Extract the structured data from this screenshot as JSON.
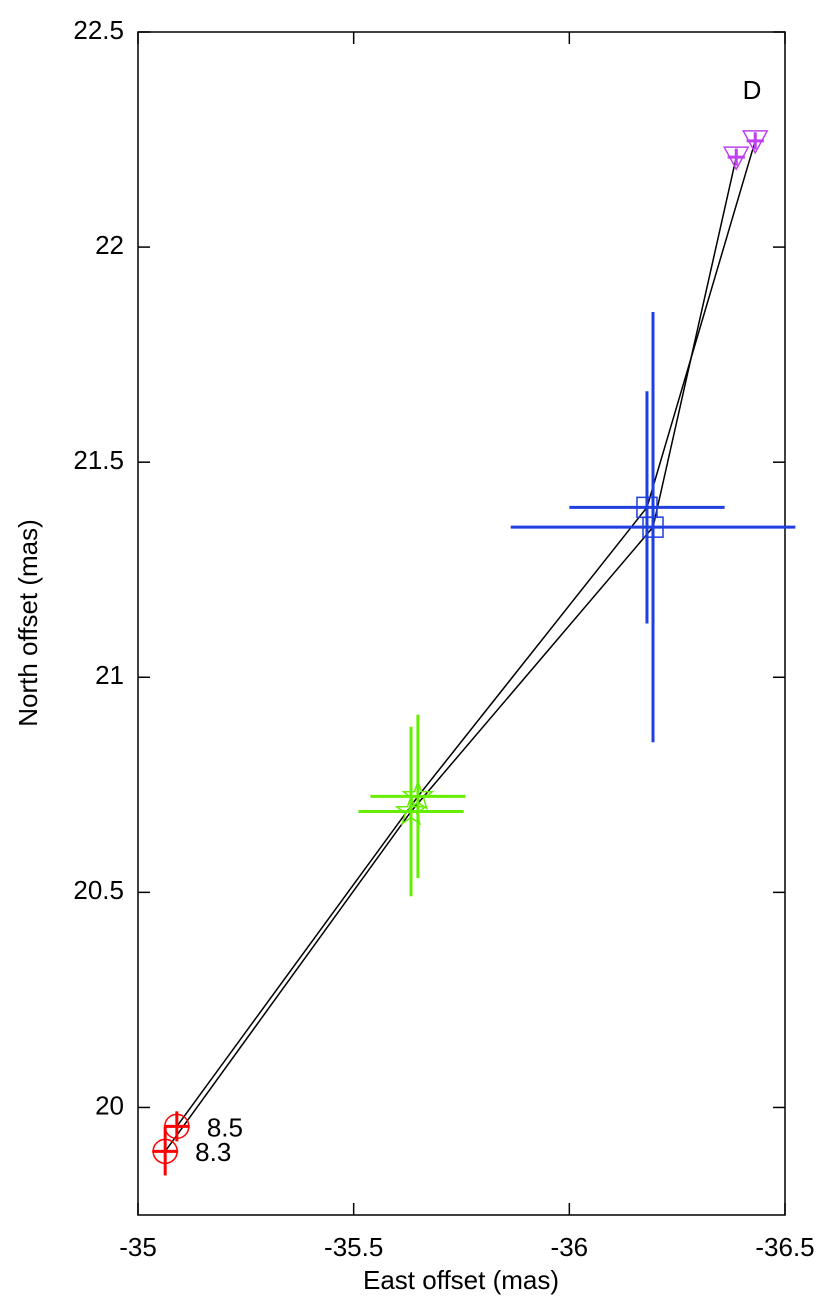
{
  "chart_data": {
    "type": "scatter",
    "xlabel": "East offset (mas)",
    "ylabel": "North offset (mas)",
    "xlim": [
      -35,
      -36.5
    ],
    "ylim": [
      19.75,
      22.5
    ],
    "xticks": [
      -35,
      -35.5,
      -36,
      -36.5
    ],
    "yticks": [
      20,
      20.5,
      21,
      21.5,
      22,
      22.5
    ],
    "point_colors": [
      "#ff0000",
      "#66ee00",
      "#1f3fe0",
      "#c040f0"
    ],
    "markers": [
      "circle",
      "star",
      "square",
      "triangle"
    ],
    "line_color": "#000000",
    "annotations": [
      "D"
    ],
    "series": [
      {
        "name": "8.5",
        "x": [
          -35.09,
          -35.649,
          -36.18,
          -36.431
        ],
        "y": [
          19.956,
          20.723,
          21.395,
          22.247
        ],
        "xerr": [
          0.03,
          0.11,
          0.18,
          0.02
        ],
        "yerr": [
          0.035,
          0.19,
          0.27,
          0.02
        ]
      },
      {
        "name": "8.3",
        "x": [
          -35.063,
          -35.633,
          -36.194,
          -36.387
        ],
        "y": [
          19.898,
          20.688,
          21.349,
          22.209
        ],
        "xerr": [
          0.03,
          0.122,
          0.33,
          0.02
        ],
        "yerr": [
          0.056,
          0.197,
          0.5,
          0.02
        ]
      }
    ]
  }
}
